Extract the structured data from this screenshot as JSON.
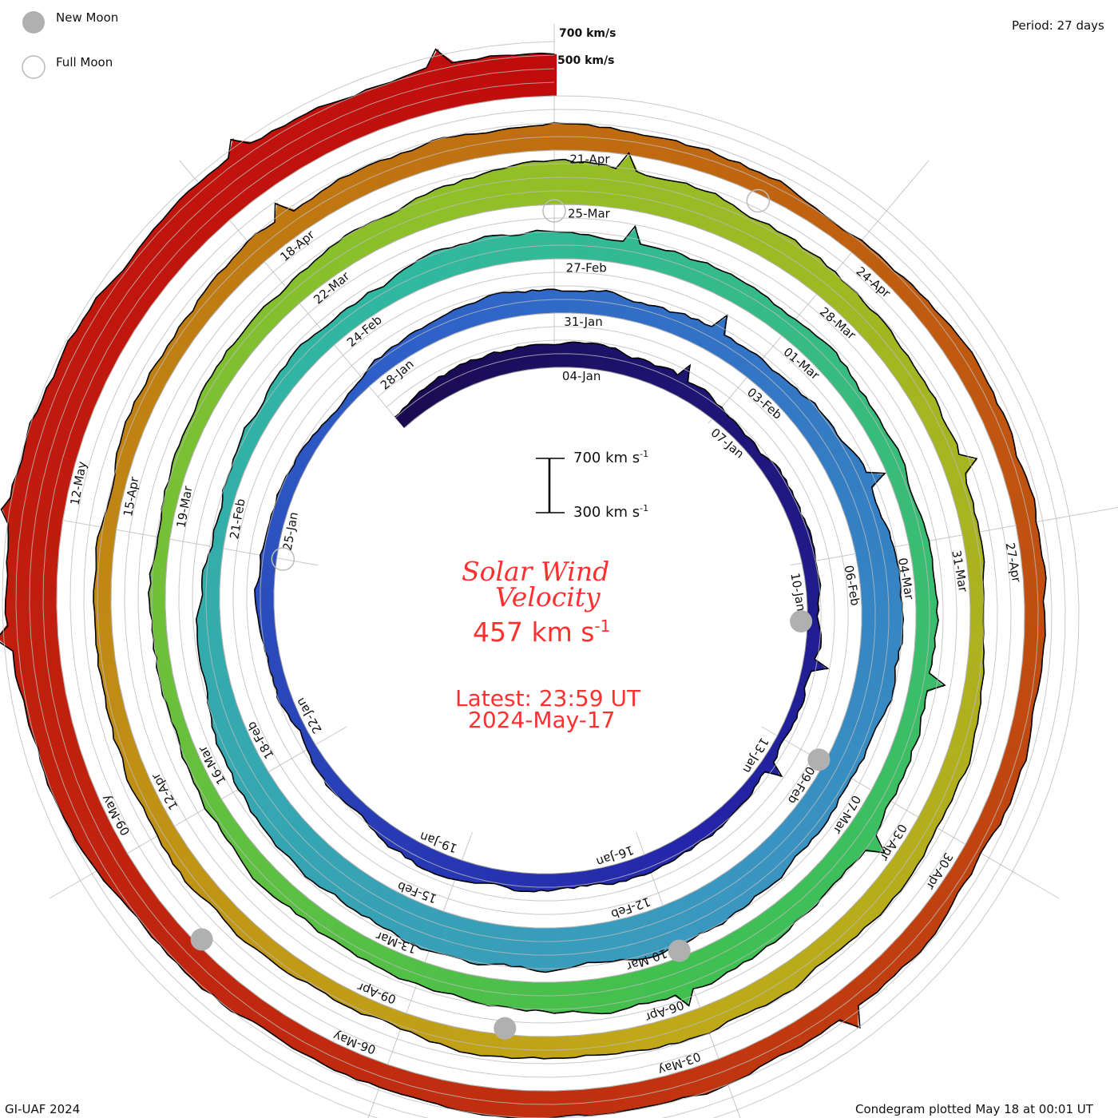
{
  "legend": {
    "new_moon": "New Moon",
    "full_moon": "Full Moon"
  },
  "period": "Period: 27 days",
  "footer_left": "GI-UAF 2024",
  "footer_right": "Condegram plotted May 18 at 00:01 UT",
  "chart_data": {
    "type": "area",
    "subtype": "condegram-spiral",
    "title_line1": "Solar Wind",
    "title_line2": "Velocity",
    "current_value": "457 km s",
    "current_unit_sup": "-1",
    "latest": "Latest: 23:59 UT",
    "latest_date": "2024-May-17",
    "period_days": 27,
    "scale": {
      "top": "700 km s",
      "bottom": "300 km s",
      "sup": "-1",
      "min": 300,
      "max": 700
    },
    "guide_labels": [
      "700 km/s",
      "500 km/s"
    ],
    "start_date": "04-Jan",
    "velocity_knots_3day": [
      420,
      470,
      420,
      380,
      380,
      400,
      420,
      380,
      400,
      380,
      480,
      450,
      600,
      550,
      620,
      600,
      550,
      400,
      450,
      500,
      450,
      420,
      480,
      550,
      500,
      420,
      400,
      450,
      600,
      500,
      420,
      450,
      500,
      420,
      450,
      400,
      480,
      500,
      430,
      450,
      430,
      500,
      500,
      550,
      680,
      620,
      600
    ],
    "knot_start_day": -3,
    "end_day": 135,
    "date_labels": [
      "04-Jan",
      "07-Jan",
      "10-Jan",
      "13-Jan",
      "16-Jan",
      "19-Jan",
      "22-Jan",
      "25-Jan",
      "28-Jan",
      "31-Jan",
      "03-Feb",
      "06-Feb",
      "09-Feb",
      "12-Feb",
      "15-Feb",
      "18-Feb",
      "21-Feb",
      "24-Feb",
      "27-Feb",
      "01-Mar",
      "04-Mar",
      "07-Mar",
      "10-Mar",
      "13-Mar",
      "16-Mar",
      "19-Mar",
      "22-Mar",
      "25-Mar",
      "28-Mar",
      "31-Mar",
      "03-Apr",
      "06-Apr",
      "09-Apr",
      "12-Apr",
      "15-Apr",
      "18-Apr",
      "21-Apr",
      "24-Apr",
      "27-Apr",
      "30-Apr",
      "03-May",
      "06-May",
      "09-May",
      "12-May"
    ],
    "new_moon_days": [
      7,
      36,
      66,
      95,
      125
    ],
    "full_moon_days": [
      21,
      81,
      110
    ],
    "colors": [
      "#1a0a50",
      "#2424a8",
      "#2e60c8",
      "#3a98c0",
      "#30b8a0",
      "#40c050",
      "#90c028",
      "#c0a818",
      "#c07010",
      "#c03010",
      "#c00c0c"
    ]
  }
}
